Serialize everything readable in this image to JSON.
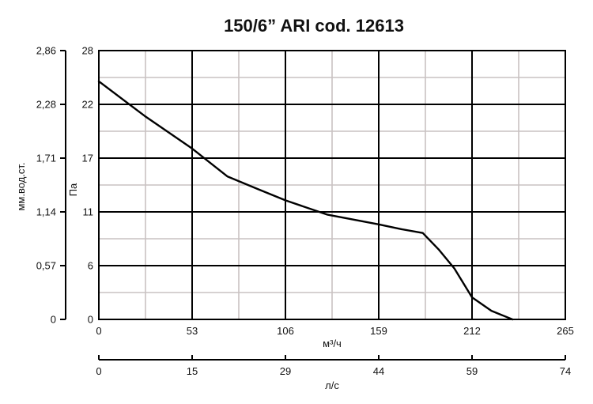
{
  "chart_data": {
    "type": "line",
    "title": "150/6” ARI cod. 12613",
    "xlabel_primary": "м³/ч",
    "xlabel_secondary": "л/с",
    "ylabel_primary": "Па",
    "ylabel_secondary": "мм.вод.ст.",
    "x_ticks_primary": [
      "0",
      "53",
      "106",
      "159",
      "212",
      "265"
    ],
    "x_ticks_secondary": [
      "0",
      "15",
      "29",
      "44",
      "59",
      "74"
    ],
    "y_ticks_primary": [
      "0",
      "6",
      "11",
      "17",
      "22",
      "28"
    ],
    "y_ticks_secondary": [
      "0",
      "0,57",
      "1,14",
      "1,71",
      "2,28",
      "2,86"
    ],
    "xlim": [
      0,
      265
    ],
    "ylim": [
      0,
      28
    ],
    "grid": true,
    "series": [
      {
        "values": [
          {
            "x": 0,
            "y": 24.8
          },
          {
            "x": 26,
            "y": 21.2
          },
          {
            "x": 53,
            "y": 17.8
          },
          {
            "x": 73,
            "y": 14.9
          },
          {
            "x": 90,
            "y": 13.6
          },
          {
            "x": 106,
            "y": 12.4
          },
          {
            "x": 130,
            "y": 10.9
          },
          {
            "x": 159,
            "y": 9.9
          },
          {
            "x": 172,
            "y": 9.4
          },
          {
            "x": 184,
            "y": 9.0
          },
          {
            "x": 193,
            "y": 7.3
          },
          {
            "x": 202,
            "y": 5.3
          },
          {
            "x": 212,
            "y": 2.3
          },
          {
            "x": 223,
            "y": 0.9
          },
          {
            "x": 235,
            "y": 0
          }
        ]
      }
    ]
  }
}
